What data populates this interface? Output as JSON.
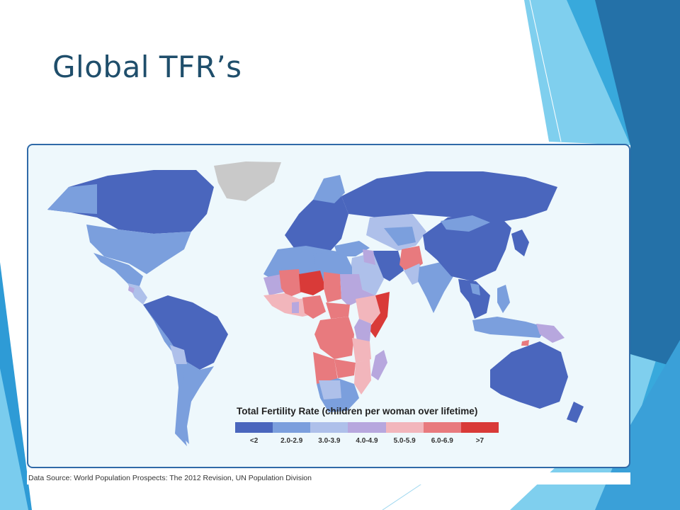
{
  "slide": {
    "title": "Global TFR’s"
  },
  "map": {
    "legend_title": "Total Fertility Rate (children per woman over lifetime)",
    "legend": [
      {
        "label": "<2",
        "color": "#4a66bd"
      },
      {
        "label": "2.0-2.9",
        "color": "#7b9fdd"
      },
      {
        "label": "3.0-3.9",
        "color": "#aec0ea"
      },
      {
        "label": "4.0-4.9",
        "color": "#b7a7de"
      },
      {
        "label": "5.0-5.9",
        "color": "#f2b6bc"
      },
      {
        "label": "6.0-6.9",
        "color": "#e87a7e"
      },
      {
        "label": ">7",
        "color": "#d93a38"
      }
    ],
    "no_data_color": "#c9c9c9",
    "ocean_color": "#eef8fc",
    "source": "Data Source: World Population Prospects: The 2012 Revision, UN Population Division"
  },
  "theme": {
    "accent_light": "#7fcfee",
    "accent_mid": "#38a9dc",
    "accent_dark": "#2471a8"
  }
}
